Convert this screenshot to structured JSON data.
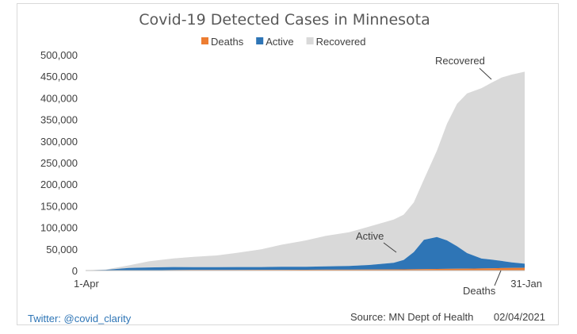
{
  "chart_data": {
    "type": "area",
    "title": "Covid-19 Detected Cases in Minnesota",
    "xlabel": "",
    "ylabel": "",
    "x_tick_labels": [
      "1-Apr",
      "31-Jan"
    ],
    "x_range": [
      "2020-04-01",
      "2021-01-31"
    ],
    "ylim": [
      0,
      500000
    ],
    "y_ticks": [
      0,
      50000,
      100000,
      150000,
      200000,
      250000,
      300000,
      350000,
      400000,
      450000,
      500000
    ],
    "y_tick_labels": [
      "0",
      "50,000",
      "100,000",
      "150,000",
      "200,000",
      "250,000",
      "300,000",
      "350,000",
      "400,000",
      "450,000",
      "500,000"
    ],
    "stacked": true,
    "legend_position": "top",
    "grid": false,
    "x": [
      "2020-04-01",
      "2020-04-15",
      "2020-05-01",
      "2020-05-15",
      "2020-06-01",
      "2020-06-15",
      "2020-07-01",
      "2020-07-15",
      "2020-08-01",
      "2020-08-15",
      "2020-09-01",
      "2020-09-15",
      "2020-10-01",
      "2020-10-15",
      "2020-11-01",
      "2020-11-08",
      "2020-11-15",
      "2020-11-22",
      "2020-12-01",
      "2020-12-08",
      "2020-12-15",
      "2020-12-22",
      "2021-01-01",
      "2021-01-08",
      "2021-01-15",
      "2021-01-22",
      "2021-01-31"
    ],
    "series": [
      {
        "name": "Deaths",
        "color": "#ed7d31",
        "values": [
          20,
          90,
          420,
          750,
          1090,
          1330,
          1470,
          1560,
          1640,
          1720,
          1860,
          1990,
          2100,
          2290,
          2530,
          2680,
          2890,
          3220,
          3620,
          3910,
          4230,
          4480,
          4700,
          5180,
          5710,
          6000,
          6240
        ]
      },
      {
        "name": "Active",
        "color": "#2e75b6",
        "values": [
          500,
          1500,
          5500,
          6500,
          7000,
          6500,
          6500,
          6500,
          6500,
          7000,
          7000,
          7500,
          8500,
          10500,
          15500,
          22000,
          40000,
          68000,
          74000,
          66000,
          52000,
          36000,
          23000,
          20000,
          16500,
          13000,
          9500
        ]
      },
      {
        "name": "Recovered",
        "color": "#d9d9d9",
        "values": [
          100,
          800,
          6000,
          14000,
          20000,
          24000,
          27000,
          33000,
          41000,
          51000,
          61000,
          71000,
          78000,
          89000,
          100000,
          105000,
          115000,
          140000,
          200000,
          270000,
          330000,
          370000,
          395000,
          410000,
          425000,
          435000,
          445000
        ]
      }
    ],
    "annotations": [
      {
        "text": "Recovered",
        "series": "Recovered"
      },
      {
        "text": "Active",
        "series": "Active"
      },
      {
        "text": "Deaths",
        "series": "Deaths"
      }
    ]
  },
  "footer": {
    "twitter": "Twitter: @covid_clarity",
    "source": "Source: MN Dept of Health",
    "date": "02/04/2021",
    "twitter_color": "#2e75b6"
  }
}
